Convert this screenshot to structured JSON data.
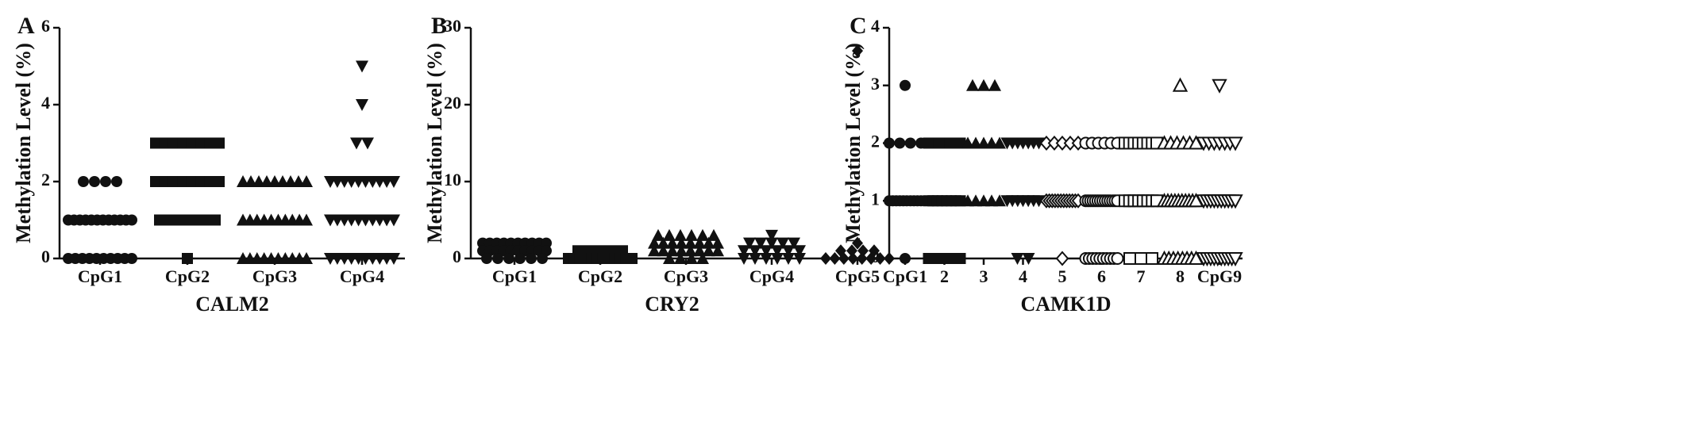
{
  "chart_data": [
    {
      "type": "dot",
      "panel": "A",
      "ylabel": "Methylation Level (%)",
      "xlabel": "CALM2",
      "categories": [
        "CpG1",
        "CpG2",
        "CpG3",
        "CpG4"
      ],
      "markers": [
        "circle",
        "square",
        "triangle",
        "down"
      ],
      "ylim": [
        0,
        6
      ],
      "yticks": [
        0,
        2,
        4,
        6
      ],
      "values": [
        [
          2,
          2,
          2,
          2,
          1,
          1,
          1,
          1,
          1,
          1,
          1,
          1,
          1,
          1,
          1,
          1,
          0,
          0,
          0,
          0,
          0,
          0,
          0,
          0,
          0,
          0
        ],
        [
          3,
          3,
          3,
          3,
          3,
          3,
          3,
          3,
          2,
          2,
          2,
          2,
          2,
          2,
          2,
          2,
          1,
          1,
          1,
          1,
          1,
          1,
          0
        ],
        [
          2,
          2,
          2,
          2,
          2,
          2,
          2,
          2,
          2,
          1,
          1,
          1,
          1,
          1,
          1,
          1,
          1,
          1,
          1,
          0,
          0,
          0,
          0,
          0,
          0,
          0,
          0,
          0,
          0
        ],
        [
          5,
          4,
          3,
          3,
          2,
          2,
          2,
          2,
          2,
          2,
          2,
          2,
          2,
          2,
          1,
          1,
          1,
          1,
          1,
          1,
          1,
          1,
          1,
          1,
          0,
          0,
          0,
          0,
          0,
          0,
          0,
          0,
          0,
          0
        ]
      ]
    },
    {
      "type": "dot",
      "panel": "B",
      "ylabel": "Methylation Level (%)",
      "xlabel": "CRY2",
      "categories": [
        "CpG1",
        "CpG2",
        "CpG3",
        "CpG4",
        "CpG5"
      ],
      "markers": [
        "circle",
        "square",
        "triangle",
        "down",
        "diamond"
      ],
      "ylim": [
        0,
        30
      ],
      "yticks": [
        0,
        10,
        20,
        30
      ],
      "values": [
        [
          2,
          2,
          2,
          2,
          2,
          2,
          2,
          2,
          2,
          2,
          1,
          1,
          1,
          1,
          1,
          1,
          1,
          1,
          1,
          1,
          0,
          0,
          0,
          0,
          0,
          0
        ],
        [
          1,
          1,
          1,
          1,
          1,
          0,
          0,
          0,
          0,
          0,
          0,
          0,
          0,
          0,
          0,
          0,
          0
        ],
        [
          3,
          3,
          3,
          3,
          3,
          3,
          2,
          2,
          2,
          2,
          2,
          2,
          2,
          2,
          1,
          1,
          1,
          1,
          1,
          1,
          1,
          1,
          0,
          0,
          0,
          0
        ],
        [
          3,
          2,
          2,
          2,
          2,
          2,
          1,
          1,
          1,
          1,
          1,
          1,
          0,
          0,
          0,
          0,
          0,
          0
        ],
        [
          27,
          2,
          1,
          1,
          1,
          1,
          0,
          0,
          0,
          0,
          0,
          0,
          0,
          0
        ]
      ]
    },
    {
      "type": "dot",
      "panel": "C",
      "ylabel": "Methylation Level (%)",
      "xlabel": "CAMK1D",
      "categories": [
        "CpG1",
        "2",
        "3",
        "4",
        "5",
        "6",
        "7",
        "8",
        "CpG9"
      ],
      "markers": [
        "circle",
        "square",
        "triangle",
        "down",
        "diamond-open",
        "circle-open",
        "square-open",
        "triangle-open",
        "down-open"
      ],
      "ylim": [
        0,
        4
      ],
      "yticks": [
        0,
        1,
        2,
        3,
        4
      ],
      "values": [
        [
          3,
          2,
          2,
          2,
          2,
          1,
          1,
          1,
          1,
          1,
          1,
          1,
          1,
          1,
          1,
          0
        ],
        [
          2,
          2,
          2,
          2,
          1,
          1,
          1,
          1,
          1,
          1,
          1,
          1,
          0,
          0,
          0,
          0,
          0,
          0
        ],
        [
          3,
          3,
          3,
          2,
          2,
          2,
          2,
          2,
          1,
          1,
          1,
          1,
          1
        ],
        [
          2,
          2,
          2,
          2,
          2,
          2,
          2,
          1,
          1,
          1,
          1,
          1,
          1,
          1,
          0,
          0
        ],
        [
          2,
          2,
          2,
          2,
          2,
          1,
          1,
          1,
          1,
          1,
          1,
          1,
          1,
          1,
          1,
          1,
          1,
          0
        ],
        [
          2,
          2,
          2,
          2,
          2,
          2,
          1,
          1,
          1,
          1,
          1,
          1,
          1,
          1,
          1,
          1,
          1,
          1,
          1,
          1,
          0,
          0,
          0,
          0,
          0,
          0,
          0,
          0,
          0,
          0
        ],
        [
          2,
          2,
          2,
          2,
          2,
          2,
          2,
          2,
          1,
          1,
          1,
          1,
          1,
          1,
          1,
          1,
          0,
          0,
          0
        ],
        [
          3,
          2,
          2,
          2,
          2,
          2,
          2,
          1,
          1,
          1,
          1,
          1,
          1,
          1,
          1,
          1,
          1,
          0,
          0,
          0,
          0,
          0,
          0,
          0,
          0
        ],
        [
          3,
          2,
          2,
          2,
          2,
          2,
          2,
          2,
          1,
          1,
          1,
          1,
          1,
          1,
          1,
          1,
          1,
          1,
          0,
          0,
          0,
          0,
          0,
          0,
          0,
          0,
          0,
          0
        ]
      ]
    }
  ]
}
